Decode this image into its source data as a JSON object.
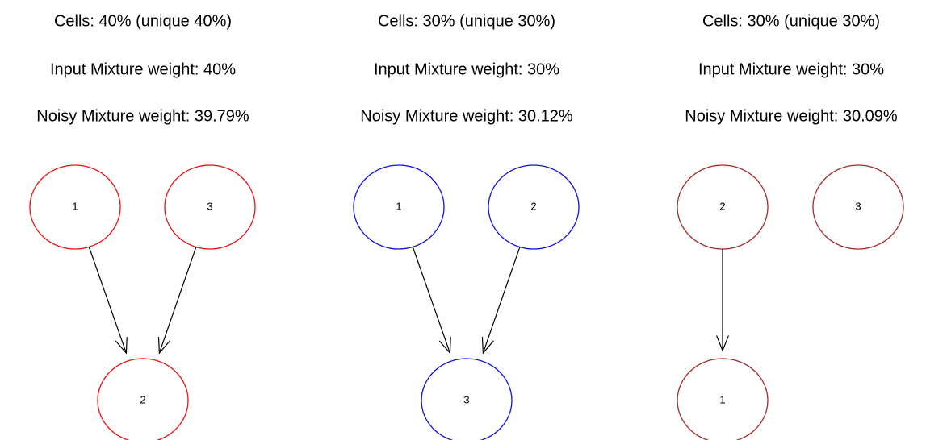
{
  "panels": [
    {
      "lines": [
        "Cells: 40% (unique 40%)",
        "Input Mixture weight: 40%",
        "Noisy Mixture weight: 39.79%"
      ],
      "color": "#ee1111",
      "nodes": [
        {
          "label": "1"
        },
        {
          "label": "3"
        },
        {
          "label": "2"
        }
      ],
      "edges": [
        [
          "1",
          "2"
        ],
        [
          "3",
          "2"
        ]
      ]
    },
    {
      "lines": [
        "Cells: 30% (unique 30%)",
        "Input Mixture weight: 30%",
        "Noisy Mixture weight: 30.12%"
      ],
      "color": "#1111dd",
      "nodes": [
        {
          "label": "1"
        },
        {
          "label": "2"
        },
        {
          "label": "3"
        }
      ],
      "edges": [
        [
          "1",
          "3"
        ],
        [
          "2",
          "3"
        ]
      ]
    },
    {
      "lines": [
        "Cells: 30% (unique 30%)",
        "Input Mixture weight: 30%",
        "Noisy Mixture weight: 30.09%"
      ],
      "color": "#a52a2a",
      "nodes": [
        {
          "label": "2"
        },
        {
          "label": "3"
        },
        {
          "label": "1"
        }
      ],
      "edges": [
        [
          "2",
          "1"
        ]
      ]
    }
  ]
}
